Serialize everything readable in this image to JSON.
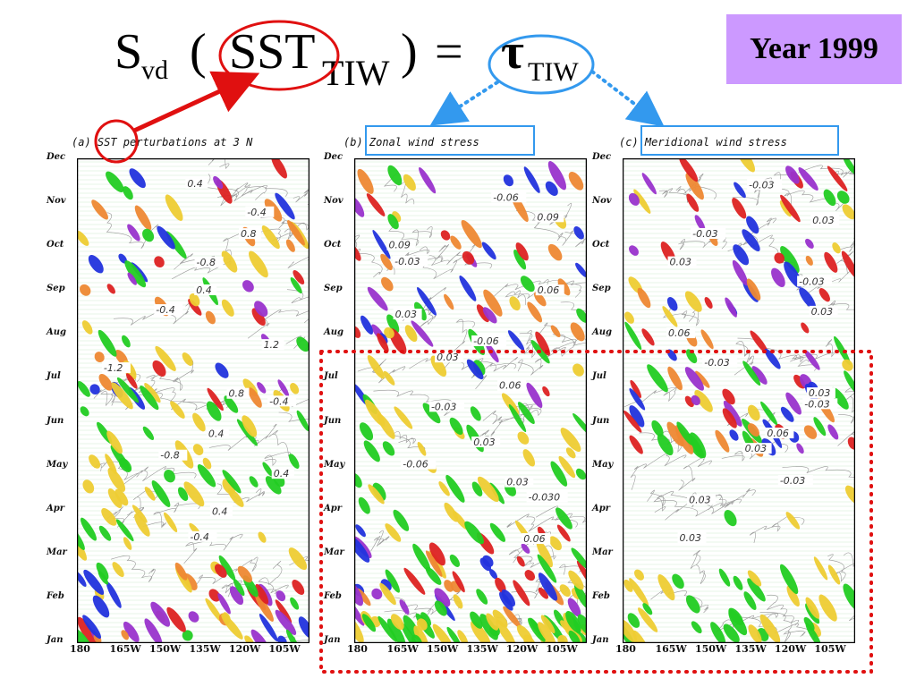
{
  "equation": {
    "s": "S",
    "s_sub": "vd",
    "open_paren": "(",
    "sst": "SST",
    "sst_sub": "TIW",
    "close_paren": ")",
    "equals": "=",
    "tau": "τ",
    "tau_sub": "TIW"
  },
  "year_label": "Year 1999",
  "panels": [
    {
      "title": "(a) SST perturbations at 3 N",
      "labels": [
        "0.4",
        "-0.4",
        "0.8",
        "-0.8",
        "0.4",
        "-0.4",
        "1.2",
        "-1.2",
        "0.8",
        "-0.4",
        "0.4",
        "-0.8",
        "0.4",
        "0.4",
        "-0.4"
      ]
    },
    {
      "title": "(b) Zonal wind stress",
      "labels": [
        "-0.06",
        "0.09",
        "0.09",
        "-0.03",
        "0.06",
        "0.03",
        "-0.06",
        "0.03",
        "0.06",
        "-0.03",
        "0.03",
        "-0.06",
        "0.03",
        "-0.030",
        "0.06"
      ]
    },
    {
      "title": "(c) Meridional wind stress",
      "labels": [
        "-0.03",
        "0.03",
        "-0.03",
        "0.03",
        "-0.03",
        "0.03",
        "0.06",
        "-0.03",
        "0.03",
        "-0.03",
        "0.06",
        "0.03",
        "-0.03",
        "0.03",
        "0.03"
      ]
    }
  ],
  "months": [
    "Dec",
    "Nov",
    "Oct",
    "Sep",
    "Aug",
    "Jul",
    "Jun",
    "May",
    "Apr",
    "Mar",
    "Feb",
    "Jan"
  ],
  "lon_ticks": [
    "180",
    "165W",
    "150W",
    "135W",
    "120W",
    "105W"
  ],
  "colors": {
    "year_box": "#cc99ff",
    "red_annotation": "#e01010",
    "blue_annotation": "#3399ee",
    "highlight_box": "#e01010",
    "shade_green": "#22cc22",
    "shade_yellow": "#eecc33",
    "shade_orange": "#ee8833",
    "shade_red": "#dd2222",
    "shade_blue": "#2233dd",
    "shade_purple": "#9933cc"
  }
}
